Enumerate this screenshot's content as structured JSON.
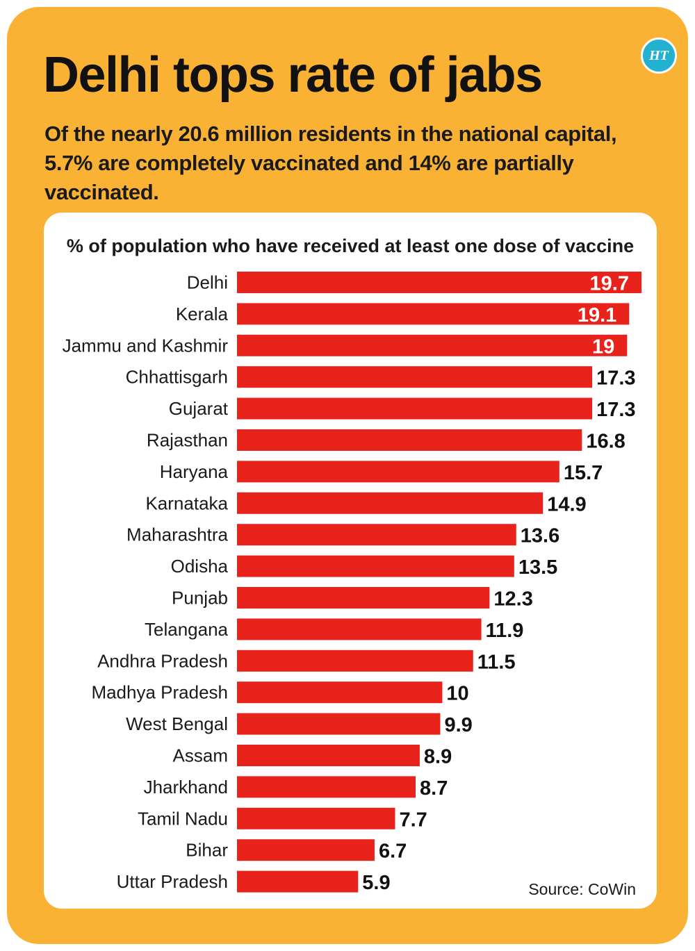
{
  "brand": {
    "logo_text": "HT",
    "accent_color": "#22b1cf"
  },
  "header": {
    "title": "Delhi tops rate of jabs",
    "subtitle": "Of the nearly 20.6 million residents in the national capital, 5.7% are completely vaccinated and 14% are partially vaccinated."
  },
  "colors": {
    "background": "#f9b233",
    "bar": "#e8231b",
    "label_inside": "#ffffff",
    "label_outside": "#111111"
  },
  "chart_data": {
    "type": "bar",
    "orientation": "horizontal",
    "title": "% of population who have received at least one dose of vaccine",
    "source": "Source: CoWin",
    "categories": [
      "Delhi",
      "Kerala",
      "Jammu and Kashmir",
      "Chhattisgarh",
      "Gujarat",
      "Rajasthan",
      "Haryana",
      "Karnataka",
      "Maharashtra",
      "Odisha",
      "Punjab",
      "Telangana",
      "Andhra Pradesh",
      "Madhya Pradesh",
      "West Bengal",
      "Assam",
      "Jharkhand",
      "Tamil Nadu",
      "Bihar",
      "Uttar Pradesh"
    ],
    "values": [
      19.7,
      19.1,
      19,
      17.3,
      17.3,
      16.8,
      15.7,
      14.9,
      13.6,
      13.5,
      12.3,
      11.9,
      11.5,
      10,
      9.9,
      8.9,
      8.7,
      7.7,
      6.7,
      5.9
    ],
    "value_labels": [
      "19.7",
      "19.1",
      "19",
      "17.3",
      "17.3",
      "16.8",
      "15.7",
      "14.9",
      "13.6",
      "13.5",
      "12.3",
      "11.9",
      "11.5",
      "10",
      "9.9",
      "8.9",
      "8.7",
      "7.7",
      "6.7",
      "5.9"
    ],
    "labels_inside_top_n": 3,
    "xlim": [
      0,
      19.7
    ],
    "grid": false,
    "legend": "none"
  }
}
